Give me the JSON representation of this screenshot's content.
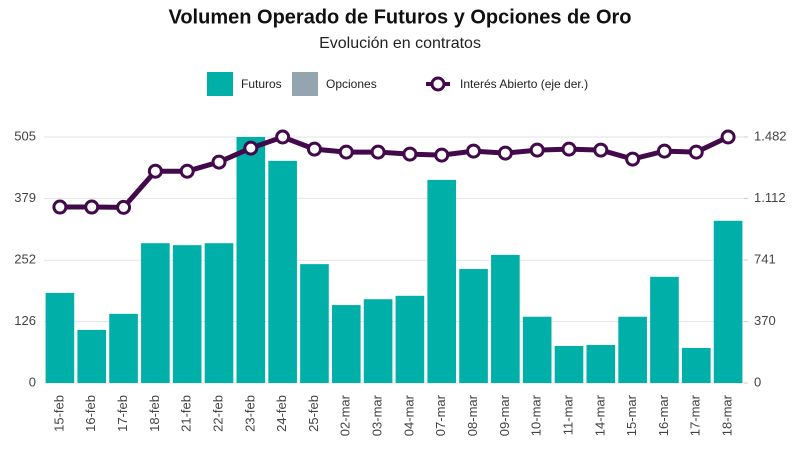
{
  "chart_data": {
    "type": "bar",
    "title": "Volumen Operado de Futuros y Opciones de Oro",
    "subtitle": "Evolución en contratos",
    "categories": [
      "15-feb",
      "16-feb",
      "17-feb",
      "18-feb",
      "21-feb",
      "22-feb",
      "23-feb",
      "24-feb",
      "25-feb",
      "02-mar",
      "03-mar",
      "04-mar",
      "07-mar",
      "08-mar",
      "09-mar",
      "10-mar",
      "11-mar",
      "14-mar",
      "15-mar",
      "16-mar",
      "17-mar",
      "18-mar"
    ],
    "series": [
      {
        "name": "Futuros",
        "color": "#00b0a8",
        "type": "bar",
        "values": [
          185,
          109,
          142,
          287,
          283,
          287,
          505,
          456,
          244,
          160,
          172,
          179,
          417,
          234,
          263,
          136,
          76,
          78,
          136,
          218,
          72,
          333
        ]
      },
      {
        "name": "Opciones",
        "color": "#95a5b0",
        "type": "bar",
        "values": [
          0,
          0,
          0,
          0,
          0,
          0,
          0,
          0,
          0,
          0,
          0,
          0,
          0,
          0,
          0,
          0,
          0,
          0,
          0,
          0,
          0,
          0
        ]
      },
      {
        "name": "Interés Abierto (eje der.)",
        "color": "#420a4a",
        "type": "line",
        "axis": "y2",
        "values": [
          1060,
          1060,
          1058,
          1276,
          1276,
          1331,
          1415,
          1482,
          1409,
          1391,
          1391,
          1379,
          1373,
          1397,
          1385,
          1403,
          1409,
          1403,
          1349,
          1397,
          1391,
          1482
        ]
      }
    ],
    "ylim": [
      0,
      505
    ],
    "yticks": [
      0,
      126,
      252,
      379,
      505
    ],
    "y2lim": [
      0,
      1482
    ],
    "y2ticks": [
      0,
      370,
      741,
      {
        "value": 1112,
        "label": "1.112"
      },
      {
        "value": 1482,
        "label": "1.482"
      }
    ],
    "grid": true,
    "legend": "top"
  }
}
